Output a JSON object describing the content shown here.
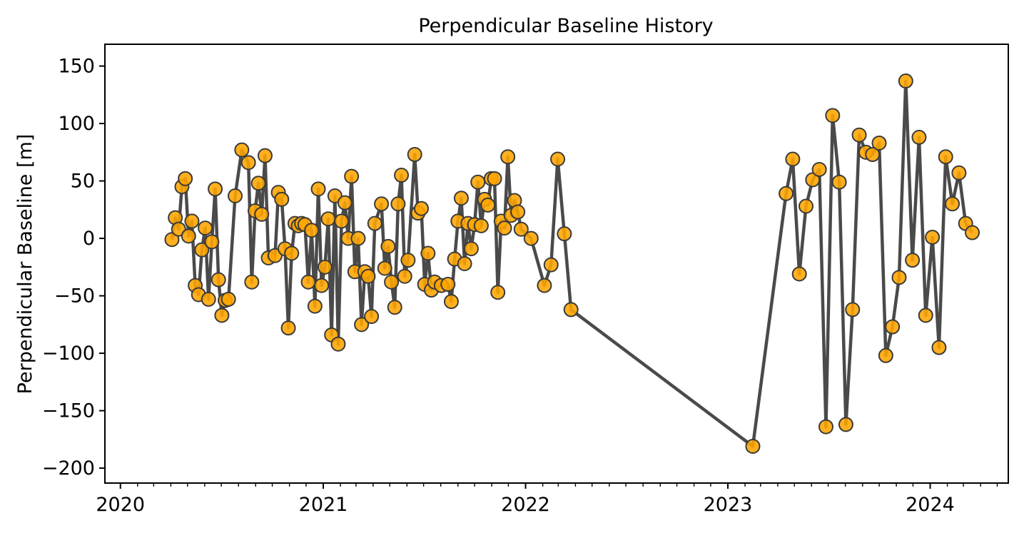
{
  "chart_data": {
    "type": "line",
    "title": "Perpendicular Baseline History",
    "xlabel": "",
    "ylabel": "Perpendicular Baseline [m]",
    "x_axis_type": "date",
    "xlim": [
      "2019-12-04",
      "2024-05-21"
    ],
    "ylim": [
      -213,
      169
    ],
    "x_ticks": [
      "2020-01-01",
      "2021-01-01",
      "2022-01-01",
      "2023-01-01",
      "2024-01-01"
    ],
    "x_tick_labels": [
      "2020",
      "2021",
      "2022",
      "2023",
      "2024"
    ],
    "y_ticks": [
      150,
      100,
      50,
      0,
      -50,
      -100,
      -150,
      -200
    ],
    "y_tick_labels": [
      "150",
      "100",
      "50",
      "0",
      "−50",
      "−100",
      "−150",
      "−200"
    ],
    "x_minor_ticks": "monthly",
    "grid": false,
    "legend": "none",
    "colors": {
      "marker_fill": "#ffa500",
      "marker_edge": "#3a3a3a",
      "line": "#4a4a4a"
    },
    "points": [
      [
        "2020-04-03",
        -1
      ],
      [
        "2020-04-09",
        18
      ],
      [
        "2020-04-15",
        8
      ],
      [
        "2020-04-21",
        45
      ],
      [
        "2020-04-27",
        52
      ],
      [
        "2020-05-03",
        2
      ],
      [
        "2020-05-09",
        15
      ],
      [
        "2020-05-15",
        -41
      ],
      [
        "2020-05-21",
        -49
      ],
      [
        "2020-05-27",
        -10
      ],
      [
        "2020-06-02",
        9
      ],
      [
        "2020-06-08",
        -53
      ],
      [
        "2020-06-14",
        -3
      ],
      [
        "2020-06-20",
        43
      ],
      [
        "2020-06-26",
        -36
      ],
      [
        "2020-07-02",
        -67
      ],
      [
        "2020-07-08",
        -54
      ],
      [
        "2020-07-14",
        -53
      ],
      [
        "2020-07-26",
        37
      ],
      [
        "2020-08-07",
        77
      ],
      [
        "2020-08-19",
        66
      ],
      [
        "2020-08-25",
        -38
      ],
      [
        "2020-08-31",
        24
      ],
      [
        "2020-09-06",
        48
      ],
      [
        "2020-09-12",
        21
      ],
      [
        "2020-09-18",
        72
      ],
      [
        "2020-09-24",
        -17
      ],
      [
        "2020-10-06",
        -15
      ],
      [
        "2020-10-12",
        40
      ],
      [
        "2020-10-18",
        34
      ],
      [
        "2020-10-24",
        -9
      ],
      [
        "2020-10-30",
        -78
      ],
      [
        "2020-11-05",
        -13
      ],
      [
        "2020-11-11",
        13
      ],
      [
        "2020-11-17",
        11
      ],
      [
        "2020-11-23",
        13
      ],
      [
        "2020-11-29",
        12
      ],
      [
        "2020-12-05",
        -38
      ],
      [
        "2020-12-11",
        7
      ],
      [
        "2020-12-17",
        -59
      ],
      [
        "2020-12-23",
        43
      ],
      [
        "2020-12-29",
        -41
      ],
      [
        "2021-01-04",
        -25
      ],
      [
        "2021-01-10",
        17
      ],
      [
        "2021-01-16",
        -84
      ],
      [
        "2021-01-22",
        37
      ],
      [
        "2021-01-28",
        -92
      ],
      [
        "2021-02-03",
        15
      ],
      [
        "2021-02-09",
        31
      ],
      [
        "2021-02-15",
        0
      ],
      [
        "2021-02-21",
        54
      ],
      [
        "2021-02-27",
        -29
      ],
      [
        "2021-03-05",
        0
      ],
      [
        "2021-03-11",
        -75
      ],
      [
        "2021-03-17",
        -29
      ],
      [
        "2021-03-23",
        -33
      ],
      [
        "2021-03-29",
        -68
      ],
      [
        "2021-04-04",
        13
      ],
      [
        "2021-04-16",
        30
      ],
      [
        "2021-04-22",
        -26
      ],
      [
        "2021-04-28",
        -7
      ],
      [
        "2021-05-04",
        -38
      ],
      [
        "2021-05-10",
        -60
      ],
      [
        "2021-05-16",
        30
      ],
      [
        "2021-05-22",
        55
      ],
      [
        "2021-05-28",
        -33
      ],
      [
        "2021-06-03",
        -19
      ],
      [
        "2021-06-15",
        73
      ],
      [
        "2021-06-21",
        22
      ],
      [
        "2021-06-27",
        26
      ],
      [
        "2021-07-03",
        -40
      ],
      [
        "2021-07-09",
        -13
      ],
      [
        "2021-07-15",
        -45
      ],
      [
        "2021-07-21",
        -38
      ],
      [
        "2021-08-02",
        -41
      ],
      [
        "2021-08-14",
        -40
      ],
      [
        "2021-08-20",
        -55
      ],
      [
        "2021-08-26",
        -18
      ],
      [
        "2021-09-01",
        15
      ],
      [
        "2021-09-07",
        35
      ],
      [
        "2021-09-13",
        -22
      ],
      [
        "2021-09-19",
        13
      ],
      [
        "2021-09-25",
        -9
      ],
      [
        "2021-10-01",
        12
      ],
      [
        "2021-10-07",
        49
      ],
      [
        "2021-10-13",
        11
      ],
      [
        "2021-10-19",
        34
      ],
      [
        "2021-10-25",
        29
      ],
      [
        "2021-10-31",
        52
      ],
      [
        "2021-11-06",
        52
      ],
      [
        "2021-11-12",
        -47
      ],
      [
        "2021-11-18",
        15
      ],
      [
        "2021-11-24",
        9
      ],
      [
        "2021-11-30",
        71
      ],
      [
        "2021-12-06",
        20
      ],
      [
        "2021-12-12",
        33
      ],
      [
        "2021-12-18",
        23
      ],
      [
        "2021-12-24",
        8
      ],
      [
        "2022-01-11",
        0
      ],
      [
        "2022-02-04",
        -41
      ],
      [
        "2022-02-16",
        -23
      ],
      [
        "2022-02-28",
        69
      ],
      [
        "2022-03-12",
        4
      ],
      [
        "2022-03-24",
        -62
      ],
      [
        "2023-02-15",
        -181
      ],
      [
        "2023-04-16",
        39
      ],
      [
        "2023-04-28",
        69
      ],
      [
        "2023-05-10",
        -31
      ],
      [
        "2023-05-22",
        28
      ],
      [
        "2023-06-03",
        51
      ],
      [
        "2023-06-15",
        60
      ],
      [
        "2023-06-27",
        -164
      ],
      [
        "2023-07-09",
        107
      ],
      [
        "2023-07-21",
        49
      ],
      [
        "2023-08-02",
        -162
      ],
      [
        "2023-08-14",
        -62
      ],
      [
        "2023-08-26",
        90
      ],
      [
        "2023-09-07",
        75
      ],
      [
        "2023-09-19",
        73
      ],
      [
        "2023-10-01",
        83
      ],
      [
        "2023-10-13",
        -102
      ],
      [
        "2023-10-25",
        -77
      ],
      [
        "2023-11-06",
        -34
      ],
      [
        "2023-11-18",
        137
      ],
      [
        "2023-11-30",
        -19
      ],
      [
        "2023-12-12",
        88
      ],
      [
        "2023-12-24",
        -67
      ],
      [
        "2024-01-05",
        1
      ],
      [
        "2024-01-17",
        -95
      ],
      [
        "2024-01-29",
        71
      ],
      [
        "2024-02-10",
        30
      ],
      [
        "2024-02-22",
        57
      ],
      [
        "2024-03-05",
        13
      ],
      [
        "2024-03-17",
        5
      ]
    ]
  }
}
